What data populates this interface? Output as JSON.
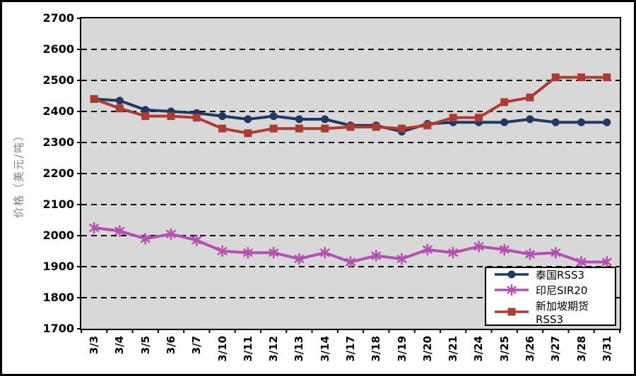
{
  "y_axis": {
    "title": "价格（美元/吨）",
    "ticks": [
      2700,
      2600,
      2500,
      2400,
      2300,
      2200,
      2100,
      2000,
      1900,
      1800,
      1700
    ]
  },
  "legend": {
    "items": [
      "泰国RSS3",
      "印尼SIR20",
      "新加坡期货RSS3"
    ]
  },
  "chart_data": {
    "type": "line",
    "title": "",
    "xlabel": "",
    "ylabel": "价格（美元/吨）",
    "ylim": [
      1700,
      2700
    ],
    "ytick_step": 100,
    "grid": "horizontal-dashed",
    "plot_bg": "#D8D8D8",
    "legend_position": "bottom-right-inside",
    "categories": [
      "3/3",
      "3/4",
      "3/5",
      "3/6",
      "3/7",
      "3/10",
      "3/11",
      "3/12",
      "3/13",
      "3/14",
      "3/17",
      "3/18",
      "3/19",
      "3/20",
      "3/21",
      "3/24",
      "3/25",
      "3/26",
      "3/27",
      "3/28",
      "3/31"
    ],
    "series": [
      {
        "name": "泰国RSS3",
        "marker": "circle",
        "color": "#1F3864",
        "values": [
          2440,
          2435,
          2405,
          2400,
          2395,
          2385,
          2375,
          2385,
          2375,
          2375,
          2355,
          2355,
          2335,
          2360,
          2365,
          2365,
          2365,
          2375,
          2365,
          2365,
          2365
        ]
      },
      {
        "name": "印尼SIR20",
        "marker": "asterisk",
        "color": "#B550B0",
        "values": [
          2025,
          2015,
          1990,
          2005,
          1985,
          1950,
          1945,
          1945,
          1925,
          1945,
          1915,
          1935,
          1925,
          1955,
          1945,
          1965,
          1955,
          1940,
          1945,
          1915,
          1915
        ]
      },
      {
        "name": "新加坡期货RSS3",
        "marker": "square",
        "color": "#AE3B30",
        "values": [
          2440,
          2410,
          2385,
          2385,
          2380,
          2345,
          2330,
          2345,
          2345,
          2345,
          2350,
          2350,
          2345,
          2355,
          2380,
          2380,
          2430,
          2445,
          2510,
          2510,
          2510
        ]
      }
    ]
  }
}
